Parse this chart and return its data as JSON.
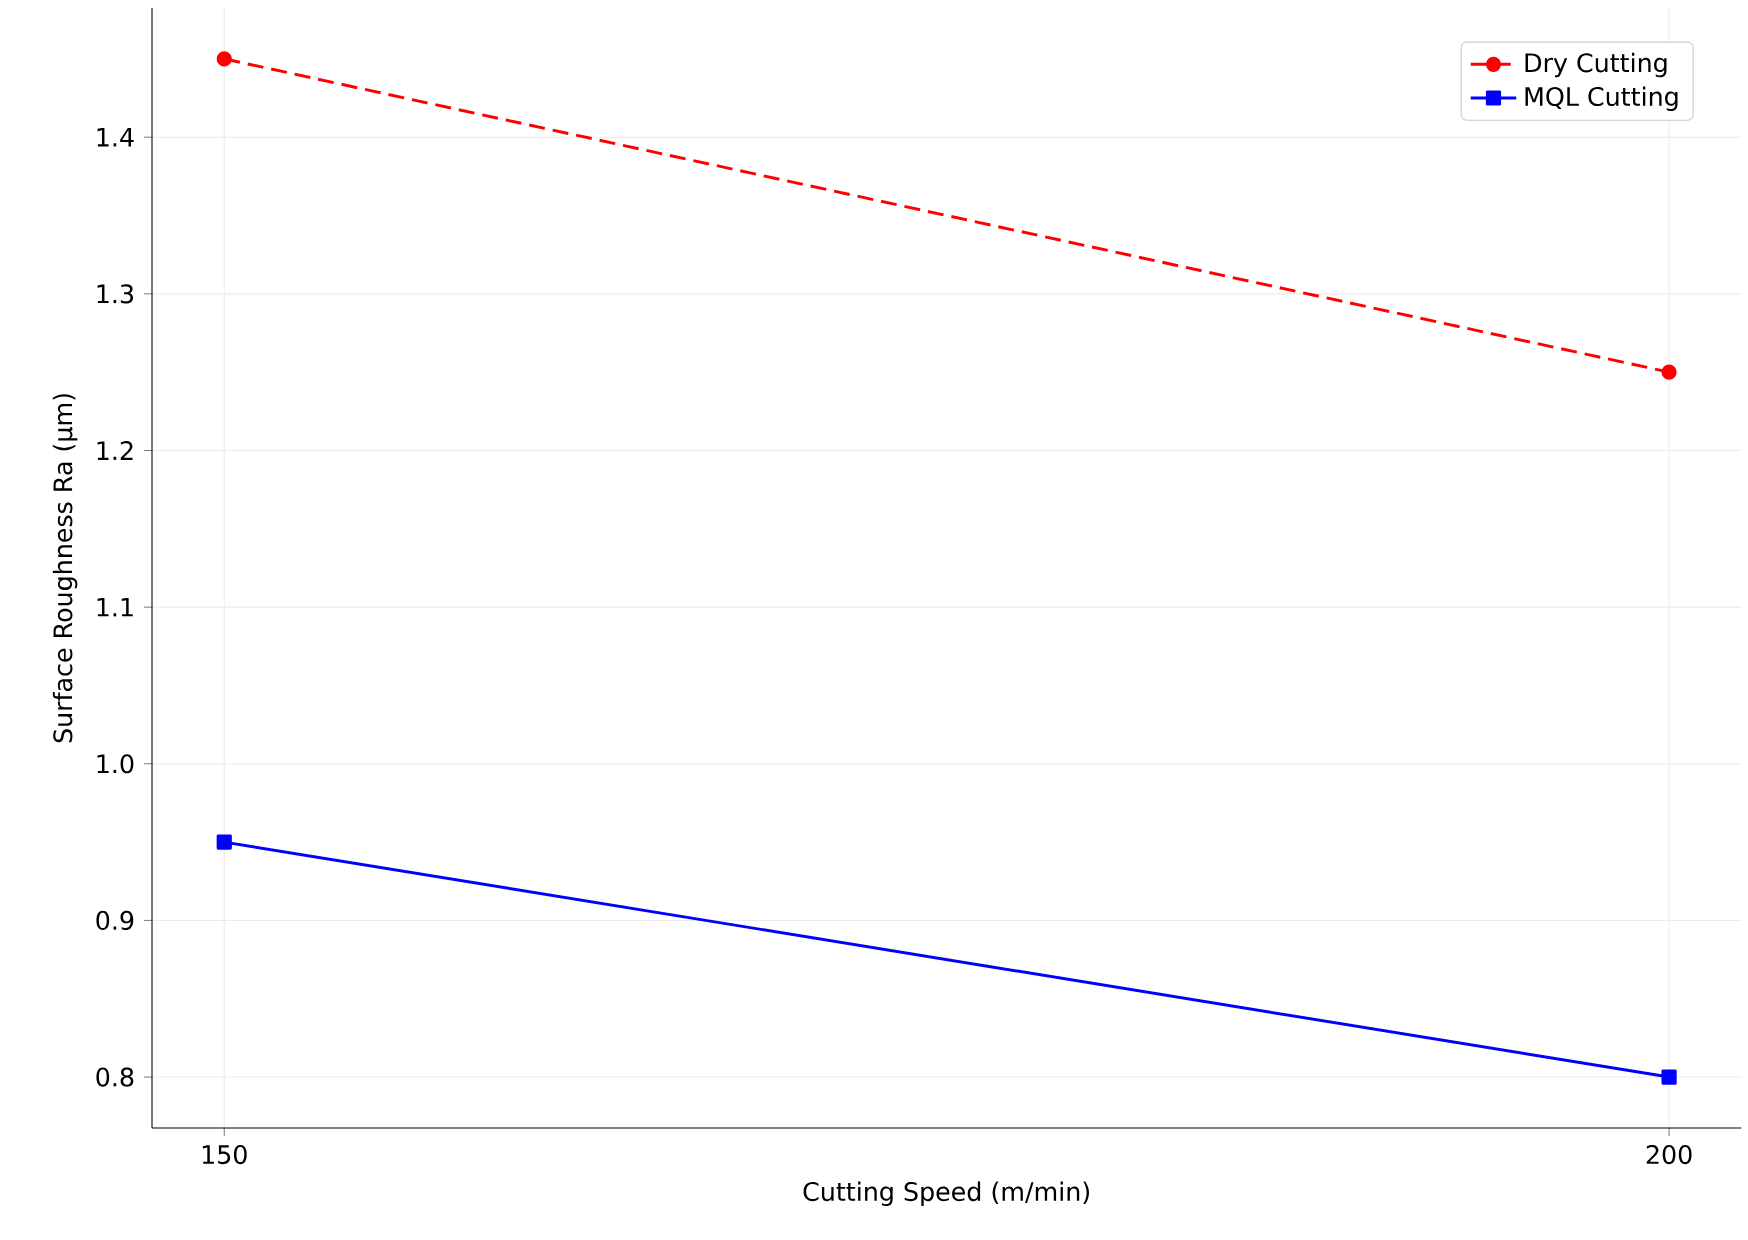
{
  "chart_data": {
    "type": "line",
    "xlabel": "Cutting Speed (m/min)",
    "ylabel": "Surface Roughness Ra (µm)",
    "x": [
      150,
      200
    ],
    "series": [
      {
        "name": "Dry Cutting",
        "color": "#ff0000",
        "values": [
          1.45,
          1.25
        ],
        "marker": "circle",
        "line_style": "dashed"
      },
      {
        "name": "MQL Cutting",
        "color": "#0000ff",
        "values": [
          0.95,
          0.8
        ],
        "marker": "square",
        "line_style": "solid"
      }
    ],
    "xlim": [
      147.5,
      202.5
    ],
    "ylim": [
      0.7675,
      1.4825
    ],
    "xticks": [
      150,
      200
    ],
    "yticks": [
      0.8,
      0.9,
      {
        "value": 1.0,
        "label": "1.0"
      },
      1.1,
      1.2,
      1.3,
      1.4
    ],
    "grid": true,
    "legend": "top right"
  }
}
